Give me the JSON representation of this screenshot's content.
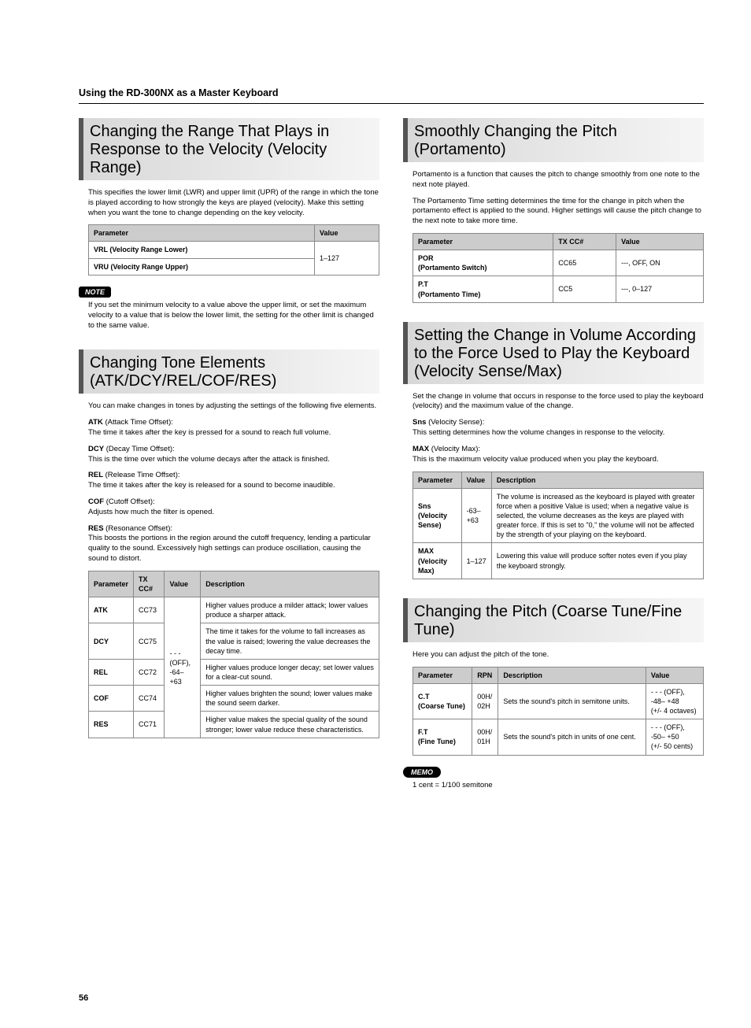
{
  "breadcrumb": "Using the RD-300NX as a Master Keyboard",
  "page_number": "56",
  "note_label": "NOTE",
  "memo_label": "MEMO",
  "left": {
    "velocity_range": {
      "title": "Changing the Range That Plays in Response to the Velocity (Velocity Range)",
      "intro": "This specifies the lower limit (LWR) and upper limit (UPR) of the range in which the tone is played according to how strongly the keys are played (velocity). Make this setting when you want the tone to change depending on the key velocity.",
      "table": {
        "headers": [
          "Parameter",
          "Value"
        ],
        "rows": [
          {
            "param": "VRL (Velocity Range Lower)",
            "value": "1–127",
            "rowspan_value": 2
          },
          {
            "param": "VRU (Velocity Range Upper)"
          }
        ]
      },
      "note": "If you set the minimum velocity to a value above the upper limit, or set the maximum velocity to a value that is below the lower limit, the setting for the other limit is changed to the same value."
    },
    "tone_elements": {
      "title": "Changing Tone Elements (ATK/DCY/REL/COF/RES)",
      "intro": "You can make changes in tones by adjusting the settings of the following five elements.",
      "defs": [
        {
          "label": "ATK",
          "hint": " (Attack Time Offset):",
          "text": "The time it takes after the key is pressed for a sound to reach full volume."
        },
        {
          "label": "DCY",
          "hint": " (Decay Time Offset):",
          "text": "This is the time over which the volume decays after the attack is finished."
        },
        {
          "label": "REL",
          "hint": " (Release Time Offset):",
          "text": "The time it takes after the key is released for a sound to become inaudible."
        },
        {
          "label": "COF",
          "hint": " (Cutoff Offset):",
          "text": "Adjusts how much the filter is opened."
        },
        {
          "label": "RES",
          "hint": " (Resonance Offset):",
          "text": "This boosts the portions in the region around the cutoff frequency, lending a particular quality to the sound. Excessively high settings can produce oscillation, causing the sound to distort."
        }
      ],
      "table": {
        "headers": [
          "Parameter",
          "TX CC#",
          "Value",
          "Description"
        ],
        "shared_value": "- - - (OFF),\n-64–+63",
        "rows": [
          {
            "param": "ATK",
            "cc": "CC73",
            "desc": "Higher values produce a milder attack; lower values produce a sharper attack."
          },
          {
            "param": "DCY",
            "cc": "CC75",
            "desc": "The time it takes for the volume to fall increases as the value is raised; lowering the value decreases the decay time."
          },
          {
            "param": "REL",
            "cc": "CC72",
            "desc": "Higher values produce longer decay; set lower values for a clear-cut sound."
          },
          {
            "param": "COF",
            "cc": "CC74",
            "desc": "Higher values brighten the sound; lower values make the sound seem darker."
          },
          {
            "param": "RES",
            "cc": "CC71",
            "desc": "Higher value makes the special quality of the sound stronger; lower value reduce these characteristics."
          }
        ]
      }
    }
  },
  "right": {
    "portamento": {
      "title": "Smoothly Changing the Pitch (Portamento)",
      "para1": "Portamento is a function that causes the pitch to change smoothly from one note to the next note played.",
      "para2": "The Portamento Time setting determines the time for the change in pitch when the portamento effect is applied to the sound. Higher settings will cause the pitch change to the next note to take more time.",
      "table": {
        "headers": [
          "Parameter",
          "TX CC#",
          "Value"
        ],
        "rows": [
          {
            "param": "POR\n(Portamento Switch)",
            "cc": "CC65",
            "value": "---, OFF, ON"
          },
          {
            "param": "P.T\n(Portamento Time)",
            "cc": "CC5",
            "value": "---, 0–127"
          }
        ]
      }
    },
    "velocity_sense": {
      "title": "Setting the Change in Volume According to the Force Used to Play the Keyboard (Velocity Sense/Max)",
      "intro": "Set the change in volume that occurs in response to the force used to play the keyboard (velocity) and the maximum value of the change.",
      "sns_label": "Sns",
      "sns_hint": " (Velocity Sense):",
      "sns_text": "This setting determines how the volume changes in response to the velocity.",
      "max_label": "MAX",
      "max_hint": " (Velocity Max):",
      "max_text": "This is the maximum velocity value produced when you play the keyboard.",
      "table": {
        "headers": [
          "Parameter",
          "Value",
          "Description"
        ],
        "rows": [
          {
            "param": "Sns\n(Velocity Sense)",
            "value": "-63–+63",
            "desc": "The volume is increased as the keyboard is played with greater force when a positive Value is used; when a negative value is selected, the volume decreases as the keys are played with greater force. If this is set to \"0,\" the volume will not be affected by the strength of your playing on the keyboard."
          },
          {
            "param": "MAX\n(Velocity Max)",
            "value": "1–127",
            "desc": "Lowering this value will produce softer notes even if you play the keyboard strongly."
          }
        ]
      }
    },
    "pitch": {
      "title": "Changing the Pitch (Coarse Tune/Fine Tune)",
      "intro": "Here you can adjust the pitch of the tone.",
      "table": {
        "headers": [
          "Parameter",
          "RPN",
          "Description",
          "Value"
        ],
        "rows": [
          {
            "param": "C.T\n(Coarse Tune)",
            "rpn": "00H/\n02H",
            "desc": "Sets the sound's pitch in semitone units.",
            "value": "- - - (OFF),\n-48– +48\n(+/- 4 octaves)"
          },
          {
            "param": "F.T\n(Fine Tune)",
            "rpn": "00H/\n01H",
            "desc": "Sets the sound's pitch in units of one cent.",
            "value": "- - - (OFF),\n-50– +50\n(+/- 50 cents)"
          }
        ]
      },
      "memo": "1 cent = 1/100 semitone"
    }
  }
}
